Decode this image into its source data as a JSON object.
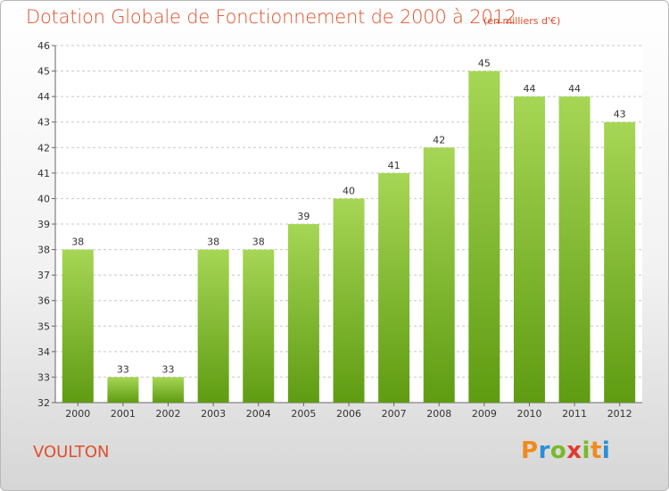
{
  "title": "Dotation Globale de Fonctionnement de 2000 à 2012",
  "subtitle": "(en milliers d'€)",
  "commune": "VOULTON",
  "brand": {
    "letters": [
      "P",
      "r",
      "o",
      "x",
      "i",
      "t",
      "i"
    ],
    "colors": [
      "#f08a1c",
      "#2b8fd6",
      "#79b928",
      "#e23a30"
    ]
  },
  "colors": {
    "bar_top": "#a6d655",
    "bar_bottom": "#5f9c12",
    "title": "#e0502a",
    "grid": "#c8c8c8"
  },
  "chart_data": {
    "type": "bar",
    "categories": [
      "2000",
      "2001",
      "2002",
      "2003",
      "2004",
      "2005",
      "2006",
      "2007",
      "2008",
      "2009",
      "2010",
      "2011",
      "2012"
    ],
    "values": [
      38,
      33,
      33,
      38,
      38,
      39,
      40,
      41,
      42,
      45,
      44,
      44,
      43
    ],
    "data_labels": [
      "38",
      "33",
      "33",
      "38",
      "38",
      "39",
      "40",
      "41",
      "42",
      "45",
      "44",
      "44",
      "43"
    ],
    "ylim": [
      32,
      46
    ],
    "yticks": [
      "32",
      "33",
      "34",
      "35",
      "36",
      "37",
      "38",
      "39",
      "40",
      "41",
      "42",
      "43",
      "44",
      "45",
      "46"
    ],
    "grid": true,
    "legend": "none"
  }
}
